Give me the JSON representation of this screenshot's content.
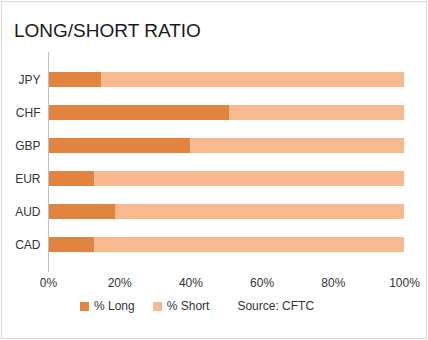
{
  "chart_data": {
    "type": "bar",
    "title": "LONG/SHORT RATIO",
    "orientation": "horizontal",
    "stacked": true,
    "categories": [
      "JPY",
      "CHF",
      "GBP",
      "EUR",
      "AUD",
      "CAD"
    ],
    "series": [
      {
        "name": "% Long",
        "color": "#e0843f",
        "values": [
          15,
          51,
          40,
          13,
          19,
          13
        ]
      },
      {
        "name": "% Short",
        "color": "#f8b98f",
        "values": [
          85,
          49,
          60,
          87,
          81,
          87
        ]
      }
    ],
    "xlim": [
      0,
      100
    ],
    "xticks": [
      {
        "value": 0,
        "label": "0%"
      },
      {
        "value": 20,
        "label": "20%"
      },
      {
        "value": 40,
        "label": "40%"
      },
      {
        "value": 60,
        "label": "60%"
      },
      {
        "value": 80,
        "label": "80%"
      },
      {
        "value": 100,
        "label": "100%"
      }
    ],
    "grid": false,
    "legend": "bottom",
    "source": "Source: CFTC"
  }
}
